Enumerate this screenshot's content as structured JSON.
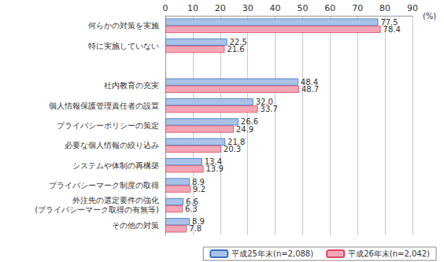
{
  "chart_data": {
    "type": "bar",
    "orientation": "horizontal",
    "categories": [
      "何らかの対策を実施",
      "特に実施していない",
      null,
      "社内教育の充実",
      "個人情報保護管理責任者の設置",
      "プライバシーポリシーの策定",
      "必要な個人情報の絞り込み",
      "システムや体制の再構築",
      "プライバシーマーク制度の取得",
      "外注先の選定要件の強化\n(プライバシーマーク取得の有無等)",
      "その他の対策"
    ],
    "series": [
      {
        "name": "平成25年末(n=2,088)",
        "color": "#a9c3e8",
        "values": [
          77.5,
          22.5,
          null,
          48.4,
          32.0,
          26.6,
          21.8,
          13.4,
          8.9,
          6.6,
          8.9
        ],
        "value_labels": [
          "77.5",
          "22.5",
          null,
          "48.4",
          "32.0",
          "26.6",
          "21.8",
          "13.4",
          "8.9",
          "6.6",
          "8.9"
        ]
      },
      {
        "name": "平成26年末(n=2,042)",
        "color": "#f3a7b6",
        "values": [
          78.4,
          21.6,
          null,
          48.7,
          33.7,
          24.9,
          20.3,
          13.9,
          9.2,
          6.3,
          7.8
        ],
        "value_labels": [
          "78.4",
          "21.6",
          null,
          "48.7",
          "33.7",
          "24.9",
          "20.3",
          "13.9",
          "9.2",
          "6.3",
          "7.8"
        ]
      }
    ],
    "xlabel": "(%)",
    "xlim": [
      0,
      90
    ],
    "xticks": [
      0,
      10,
      20,
      30,
      40,
      50,
      60,
      70,
      80,
      90
    ],
    "grid": true,
    "legend": "bottom",
    "data_labels": true
  }
}
